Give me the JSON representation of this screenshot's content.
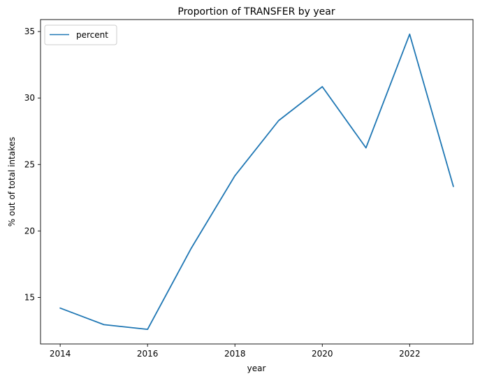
{
  "chart_data": {
    "type": "line",
    "title": "Proportion of TRANSFER by year",
    "xlabel": "year",
    "ylabel": "% out of total intakes",
    "x": [
      2014,
      2015,
      2016,
      2017,
      2018,
      2019,
      2020,
      2021,
      2022,
      2023
    ],
    "series": [
      {
        "name": "percent",
        "color": "#1f77b4",
        "values": [
          14.2,
          12.95,
          12.6,
          18.7,
          24.15,
          28.3,
          30.85,
          26.25,
          34.8,
          23.35
        ]
      }
    ],
    "xlim": [
      2013.55,
      2023.45
    ],
    "ylim": [
      11.5,
      35.9
    ],
    "xticks": [
      2014,
      2016,
      2018,
      2020,
      2022
    ],
    "xtick_labels": [
      "2014",
      "2016",
      "2018",
      "2020",
      "2022"
    ],
    "yticks": [
      15,
      20,
      25,
      30,
      35
    ],
    "ytick_labels": [
      "15",
      "20",
      "25",
      "30",
      "35"
    ],
    "grid": false,
    "legend": "top-left"
  }
}
